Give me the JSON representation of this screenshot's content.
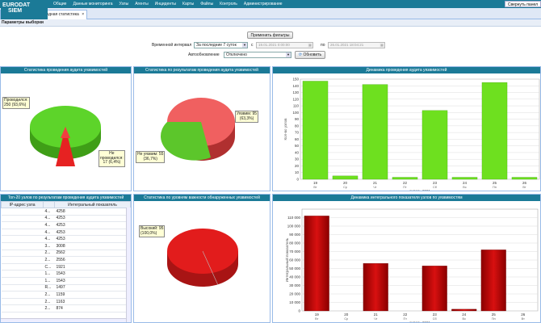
{
  "app": {
    "logo_line1": "EURODAT",
    "logo_line2": "SIEM"
  },
  "nav": [
    "Общие",
    "Данные мониторинга",
    "Узлы",
    "Агенты",
    "Инциденты",
    "Карты",
    "Файлы",
    "Контроль",
    "Администрирование"
  ],
  "collapse_label": "Свернуть панел",
  "tab_label": "Аудит уязвимостей: Сводная статистика",
  "params_title": "Параметры выборки",
  "filters": {
    "apply_label": "Применить фильтры",
    "interval_label": "Временной интервал",
    "interval_value": "За последние 7 суток",
    "from_label": "с",
    "from_value": "19.01.2021 0:00:00",
    "to_label": "по",
    "to_value": "26.01.2021 18:04:21",
    "autorefresh_label": "Автообновление",
    "autorefresh_value": "Отключено",
    "refresh_label": "Обновить"
  },
  "panels": {
    "audit_stats": {
      "title": "Статистика проведения аудита уязвимостей",
      "tip_done": "Проводился:\n250 (93,6%)",
      "tip_not": "Не\nпроводился:\n17 (6,4%)"
    },
    "audit_results": {
      "title": "Статистика по результатам проведения аудита уязвимостей",
      "tip_vuln": "Уязвим: 95\n(63,3%)",
      "tip_notvuln": "Не уязвим: 55\n(36,7%)"
    },
    "severity": {
      "title": "Статистика по уровням важности обнаруженных уязвимостей",
      "tip_high": "Высокий: 95\n(100,0%)"
    },
    "top20": {
      "title": "Топ-20 узлов по результатам проведения аудита уязвимостей",
      "col_ip": "IP-адрес узла",
      "col_value": "Интегральный показатель",
      "rows": [
        {
          "ip": "",
          "c": "4...",
          "v": "4258"
        },
        {
          "ip": "",
          "c": "4...",
          "v": "4253"
        },
        {
          "ip": "",
          "c": "4...",
          "v": "4253"
        },
        {
          "ip": "",
          "c": "4...",
          "v": "4253"
        },
        {
          "ip": "",
          "c": "4...",
          "v": "4253"
        },
        {
          "ip": "",
          "c": "3...",
          "v": "3008"
        },
        {
          "ip": "",
          "c": "2...",
          "v": "2562"
        },
        {
          "ip": "",
          "c": "2...",
          "v": "2556"
        },
        {
          "ip": "",
          "c": "C...",
          "v": "1921"
        },
        {
          "ip": "",
          "c": "1...",
          "v": "1543"
        },
        {
          "ip": "",
          "c": "1...",
          "v": "1543"
        },
        {
          "ip": "",
          "c": "R...",
          "v": "1497"
        },
        {
          "ip": "",
          "c": "2...",
          "v": "1159"
        },
        {
          "ip": "",
          "c": "2...",
          "v": "1163"
        },
        {
          "ip": "",
          "c": "2...",
          "v": "874"
        }
      ]
    }
  },
  "chart_data": [
    {
      "type": "pie",
      "title": "Статистика проведения аудита уязвимостей",
      "slices": [
        {
          "name": "Проводился",
          "value": 250,
          "pct": 93.6
        },
        {
          "name": "Не проводился",
          "value": 17,
          "pct": 6.4
        }
      ],
      "colors": [
        "#5dd42a",
        "#e62222"
      ]
    },
    {
      "type": "pie",
      "title": "Статистика по результатам проведения аудита уязвимостей",
      "slices": [
        {
          "name": "Уязвим",
          "value": 95,
          "pct": 63.3
        },
        {
          "name": "Не уязвим",
          "value": 55,
          "pct": 36.7
        }
      ],
      "colors": [
        "#ee5555",
        "#5dd42a"
      ]
    },
    {
      "type": "pie",
      "title": "Статистика по уровням важности обнаруженных уязвимостей",
      "slices": [
        {
          "name": "Высокий",
          "value": 95,
          "pct": 100.0
        }
      ],
      "colors": [
        "#e21c1c"
      ]
    },
    {
      "type": "bar",
      "title": "Динамика проведения аудита уязвимостей",
      "categories": [
        "19",
        "20",
        "21",
        "22",
        "23",
        "24",
        "25",
        "26"
      ],
      "day_labels": [
        "Вт",
        "Ср",
        "Чт",
        "Пт",
        "Сб",
        "Вс",
        "Пн",
        "Вт"
      ],
      "values": [
        147,
        5,
        142,
        3,
        103,
        3,
        145,
        3
      ],
      "ylabel": "Кол-во узлов",
      "xlabel": "январь 2021",
      "ylim": [
        0,
        150
      ],
      "yticks": [
        0,
        10,
        20,
        30,
        40,
        50,
        60,
        70,
        80,
        90,
        100,
        110,
        120,
        130,
        140,
        150
      ],
      "color": "#6ee01f"
    },
    {
      "type": "bar",
      "title": "Динамика интегрального показателя узлов по уязвимостям",
      "categories": [
        "19",
        "20",
        "21",
        "22",
        "23",
        "24",
        "25",
        "26"
      ],
      "day_labels": [
        "Вт",
        "Ср",
        "Чт",
        "Пт",
        "Сб",
        "Вс",
        "Пн",
        "Вт"
      ],
      "values": [
        112000,
        0,
        56000,
        0,
        53000,
        2000,
        72000,
        0
      ],
      "ylabel": "Интегральный показатель",
      "xlabel": "январь 2021",
      "ylim": [
        0,
        120000
      ],
      "yticks": [
        0,
        10000,
        20000,
        30000,
        40000,
        50000,
        60000,
        70000,
        80000,
        90000,
        100000,
        110000
      ],
      "ytick_labels": [
        "0",
        "10 000",
        "20 000",
        "30 000",
        "40 000",
        "50 000",
        "60 000",
        "70 000",
        "80 000",
        "90 000",
        "100 000",
        "110 000"
      ],
      "color": "#c00000"
    }
  ]
}
